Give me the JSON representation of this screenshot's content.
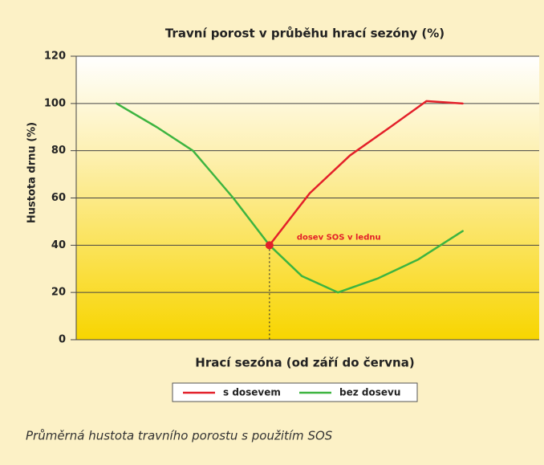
{
  "chart_data": {
    "type": "line",
    "title": "Travní porost v průběhu hrací sezóny (%)",
    "x_label": "Hrací sezóna (od září do června)",
    "y_label": "Hustota drnu (%)",
    "caption": "Průměrná hustota travního porostu s použitím SOS",
    "xlim": [
      0,
      11.5
    ],
    "ylim": [
      0,
      120
    ],
    "yticks": [
      0,
      20,
      40,
      60,
      80,
      100,
      120
    ],
    "grid": true,
    "annotation": {
      "text": "dosev SOS v lednu",
      "x": 4.8,
      "y": 40,
      "color": "#e3202a"
    },
    "series": [
      {
        "name": "s dosevem",
        "color": "#e3202a",
        "x": [
          4.8,
          5.8,
          6.8,
          7.8,
          8.7,
          9.6
        ],
        "values": [
          40,
          62,
          78,
          90,
          101,
          100
        ]
      },
      {
        "name": "bez dosevu",
        "color": "#3db440",
        "x": [
          1,
          2,
          2.9,
          3.9,
          4.8,
          5.6,
          6.5,
          7.5,
          8.5,
          9.6
        ],
        "values": [
          100,
          90,
          80,
          60,
          40,
          27,
          20,
          26,
          34,
          46
        ]
      }
    ]
  }
}
